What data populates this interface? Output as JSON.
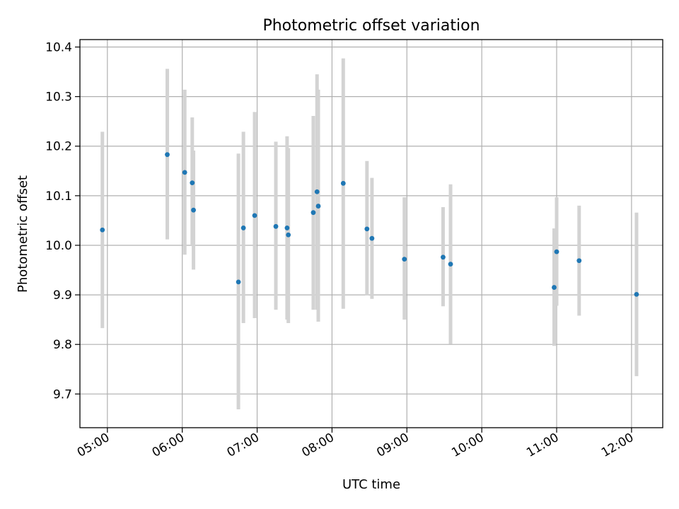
{
  "chart_data": {
    "type": "scatter",
    "title": "Photometric offset variation",
    "xlabel": "UTC time",
    "ylabel": "Photometric offset",
    "x_ticks": [
      "05:00",
      "06:00",
      "07:00",
      "08:00",
      "09:00",
      "10:00",
      "11:00",
      "12:00"
    ],
    "y_ticks": [
      "9.7",
      "9.8",
      "9.9",
      "10.0",
      "10.1",
      "10.2",
      "10.3",
      "10.4"
    ],
    "xlim": [
      "04:38",
      "12:25"
    ],
    "ylim": [
      9.632,
      10.415
    ],
    "grid": true,
    "legend": "none",
    "marker_color": "#1f77b4",
    "errorbar_color": "#d3d3d3",
    "points": [
      {
        "x": "04:56",
        "y": 10.031,
        "ylo": 9.833,
        "yhi": 10.229
      },
      {
        "x": "05:48",
        "y": 10.183,
        "ylo": 10.012,
        "yhi": 10.356
      },
      {
        "x": "06:02",
        "y": 10.147,
        "ylo": 9.981,
        "yhi": 10.314
      },
      {
        "x": "06:08",
        "y": 10.126,
        "ylo": 10.0,
        "yhi": 10.258
      },
      {
        "x": "06:09",
        "y": 10.071,
        "ylo": 9.951,
        "yhi": 10.191
      },
      {
        "x": "06:45",
        "y": 9.926,
        "ylo": 9.669,
        "yhi": 10.185
      },
      {
        "x": "06:49",
        "y": 10.035,
        "ylo": 9.843,
        "yhi": 10.229
      },
      {
        "x": "06:58",
        "y": 10.06,
        "ylo": 9.853,
        "yhi": 10.269
      },
      {
        "x": "07:15",
        "y": 10.038,
        "ylo": 9.87,
        "yhi": 10.209
      },
      {
        "x": "07:24",
        "y": 10.035,
        "ylo": 9.85,
        "yhi": 10.22
      },
      {
        "x": "07:25",
        "y": 10.021,
        "ylo": 9.843,
        "yhi": 10.196
      },
      {
        "x": "07:45",
        "y": 10.066,
        "ylo": 9.87,
        "yhi": 10.261
      },
      {
        "x": "07:48",
        "y": 10.108,
        "ylo": 9.87,
        "yhi": 10.345
      },
      {
        "x": "07:49",
        "y": 10.079,
        "ylo": 9.846,
        "yhi": 10.314
      },
      {
        "x": "08:09",
        "y": 10.125,
        "ylo": 9.872,
        "yhi": 10.377
      },
      {
        "x": "08:28",
        "y": 10.033,
        "ylo": 9.899,
        "yhi": 10.17
      },
      {
        "x": "08:32",
        "y": 10.014,
        "ylo": 9.892,
        "yhi": 10.136
      },
      {
        "x": "08:58",
        "y": 9.972,
        "ylo": 9.85,
        "yhi": 10.097
      },
      {
        "x": "09:29",
        "y": 9.976,
        "ylo": 9.877,
        "yhi": 10.077
      },
      {
        "x": "09:35",
        "y": 9.962,
        "ylo": 9.801,
        "yhi": 10.123
      },
      {
        "x": "10:58",
        "y": 9.915,
        "ylo": 9.797,
        "yhi": 10.034
      },
      {
        "x": "11:00",
        "y": 9.987,
        "ylo": 9.878,
        "yhi": 10.097
      },
      {
        "x": "11:18",
        "y": 9.969,
        "ylo": 9.858,
        "yhi": 10.08
      },
      {
        "x": "12:04",
        "y": 9.901,
        "ylo": 9.736,
        "yhi": 10.066
      }
    ]
  }
}
